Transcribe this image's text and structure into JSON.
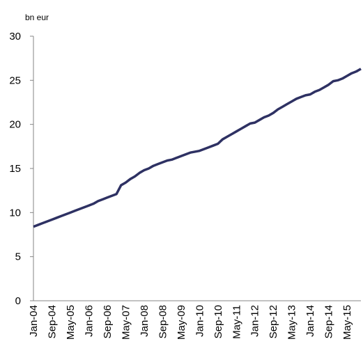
{
  "chart_data": {
    "type": "line",
    "y_label": "bn eur",
    "categories": [
      "Jan-04",
      null,
      null,
      null,
      "Sep-04",
      null,
      null,
      null,
      "May-05",
      null,
      null,
      null,
      "Jan-06",
      null,
      null,
      null,
      "Sep-06",
      null,
      null,
      null,
      "May-07",
      null,
      null,
      null,
      "Jan-08",
      null,
      null,
      null,
      "Sep-08",
      null,
      null,
      null,
      "May-09",
      null,
      null,
      null,
      "Jan-10",
      null,
      null,
      null,
      "Sep-10",
      null,
      null,
      null,
      "May-11",
      null,
      null,
      null,
      "Jan-12",
      null,
      null,
      null,
      "Sep-12",
      null,
      null,
      null,
      "May-13",
      null,
      null,
      null,
      "Jan-14",
      null,
      null,
      null,
      "Sep-14",
      null,
      null,
      null,
      "May-15",
      null,
      null,
      null
    ],
    "values": [
      8.4,
      8.6,
      8.8,
      9.0,
      9.2,
      9.4,
      9.6,
      9.8,
      10.0,
      10.2,
      10.4,
      10.6,
      10.8,
      11.0,
      11.3,
      11.5,
      11.7,
      11.9,
      12.1,
      13.1,
      13.4,
      13.8,
      14.1,
      14.5,
      14.8,
      15.0,
      15.3,
      15.5,
      15.7,
      15.9,
      16.0,
      16.2,
      16.4,
      16.6,
      16.8,
      16.9,
      17.0,
      17.2,
      17.4,
      17.6,
      17.8,
      18.3,
      18.6,
      18.9,
      19.2,
      19.5,
      19.8,
      20.1,
      20.2,
      20.5,
      20.8,
      21.0,
      21.3,
      21.7,
      22.0,
      22.3,
      22.6,
      22.9,
      23.1,
      23.3,
      23.4,
      23.7,
      23.9,
      24.2,
      24.5,
      24.9,
      25.0,
      25.2,
      25.5,
      25.8,
      26.0,
      26.3
    ],
    "color": "#2e3163",
    "ylim": [
      0,
      30
    ],
    "yticks": [
      0,
      5,
      10,
      15,
      20,
      25,
      30
    ]
  }
}
